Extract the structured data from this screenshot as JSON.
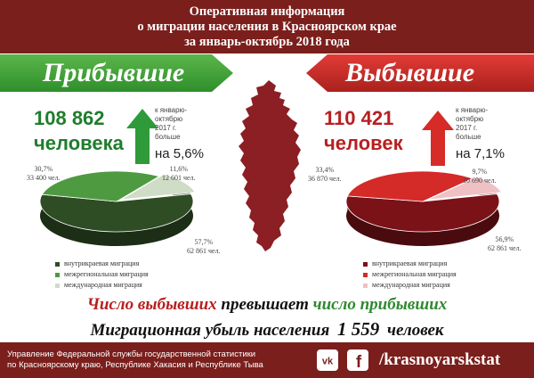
{
  "header": {
    "line1": "Оперативная информация",
    "line2": "о миграции населения в Красноярском крае",
    "line3": "за январь-октябрь 2018 года"
  },
  "arrivals": {
    "title": "Прибывшие",
    "count": "108 862",
    "unit": "человека",
    "note_lines": [
      "к январю-",
      "октябрю",
      "2017 г.",
      "больше"
    ],
    "change": "на 5,6%",
    "pie": [
      {
        "name": "внутрикраевая миграция",
        "percent": "57,7%",
        "people": "62 861 чел.",
        "value": 57.7,
        "color": "#2e4d24"
      },
      {
        "name": "межрегиональная миграция",
        "percent": "30,7%",
        "people": "33 400 чел.",
        "value": 30.7,
        "color": "#4e9a40"
      },
      {
        "name": "международная миграция",
        "percent": "11,6%",
        "people": "12 601 чел.",
        "value": 11.6,
        "color": "#cfdcc6"
      }
    ]
  },
  "departures": {
    "title": "Выбывшие",
    "count": "110 421",
    "unit": "человек",
    "note_lines": [
      "к январю-",
      "октябрю",
      "2017 г.",
      "больше"
    ],
    "change": "на 7,1%",
    "pie": [
      {
        "name": "внутрикраевая миграция",
        "percent": "56,9%",
        "people": "62 861 чел.",
        "value": 56.9,
        "color": "#7a1218"
      },
      {
        "name": "межрегиональная миграция",
        "percent": "33,4%",
        "people": "36 870 чел.",
        "value": 33.4,
        "color": "#d42a28"
      },
      {
        "name": "международная миграция",
        "percent": "9,7%",
        "people": "10 690 чел.",
        "value": 9.7,
        "color": "#efc1c4"
      }
    ]
  },
  "summary": {
    "w1": "Число выбывших",
    "w2": "превышает",
    "w3": "число прибывших",
    "text_before": "Миграционная убыль населения",
    "number": "1 559",
    "text_after": "человек"
  },
  "footer": {
    "org_line1": "Управление Федеральной службы государственной статистики",
    "org_line2": "по Красноярскому краю, Республике Хакасия и Республике Тыва",
    "vk_icon": "vk-icon",
    "fb_icon": "facebook-icon",
    "handle": "/krasnoyarskstat"
  },
  "colors": {
    "header_bg": "#7a1f1c",
    "green": "#1f7d2d",
    "red": "#b81f1f",
    "map": "#8b1f24"
  }
}
